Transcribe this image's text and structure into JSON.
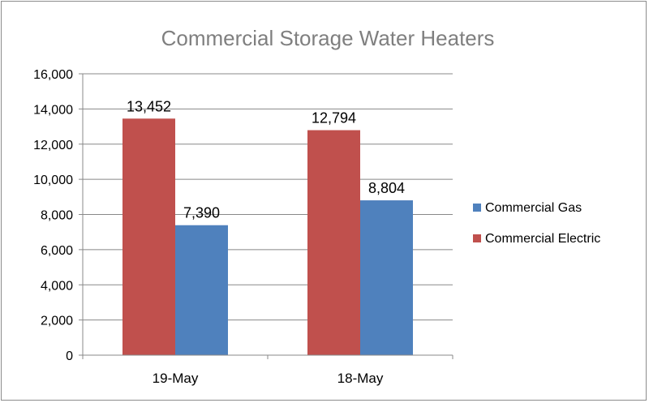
{
  "chart_data": {
    "type": "bar",
    "title": "Commercial Storage Water Heaters",
    "xlabel": "",
    "ylabel": "",
    "categories": [
      "19-May",
      "18-May"
    ],
    "series": [
      {
        "name": "Commercial Electric",
        "values": [
          13452,
          12794
        ],
        "labels": [
          "13,452",
          "12,794"
        ],
        "color": "#c0504d"
      },
      {
        "name": "Commercial Gas",
        "values": [
          7390,
          8804
        ],
        "labels": [
          "7,390",
          "8,804"
        ],
        "color": "#4f81bd"
      }
    ],
    "ylim": [
      0,
      16000
    ],
    "yticks": [
      0,
      2000,
      4000,
      6000,
      8000,
      10000,
      12000,
      14000,
      16000
    ],
    "ytick_labels": [
      "0",
      "2,000",
      "4,000",
      "6,000",
      "8,000",
      "10,000",
      "12,000",
      "14,000",
      "16,000"
    ],
    "legend_order": [
      "Commercial Gas",
      "Commercial Electric"
    ],
    "legend_placement": "right",
    "grid": true,
    "colors": {
      "gridline": "#888888",
      "axis": "#888888",
      "title": "#7f7f7f"
    }
  }
}
